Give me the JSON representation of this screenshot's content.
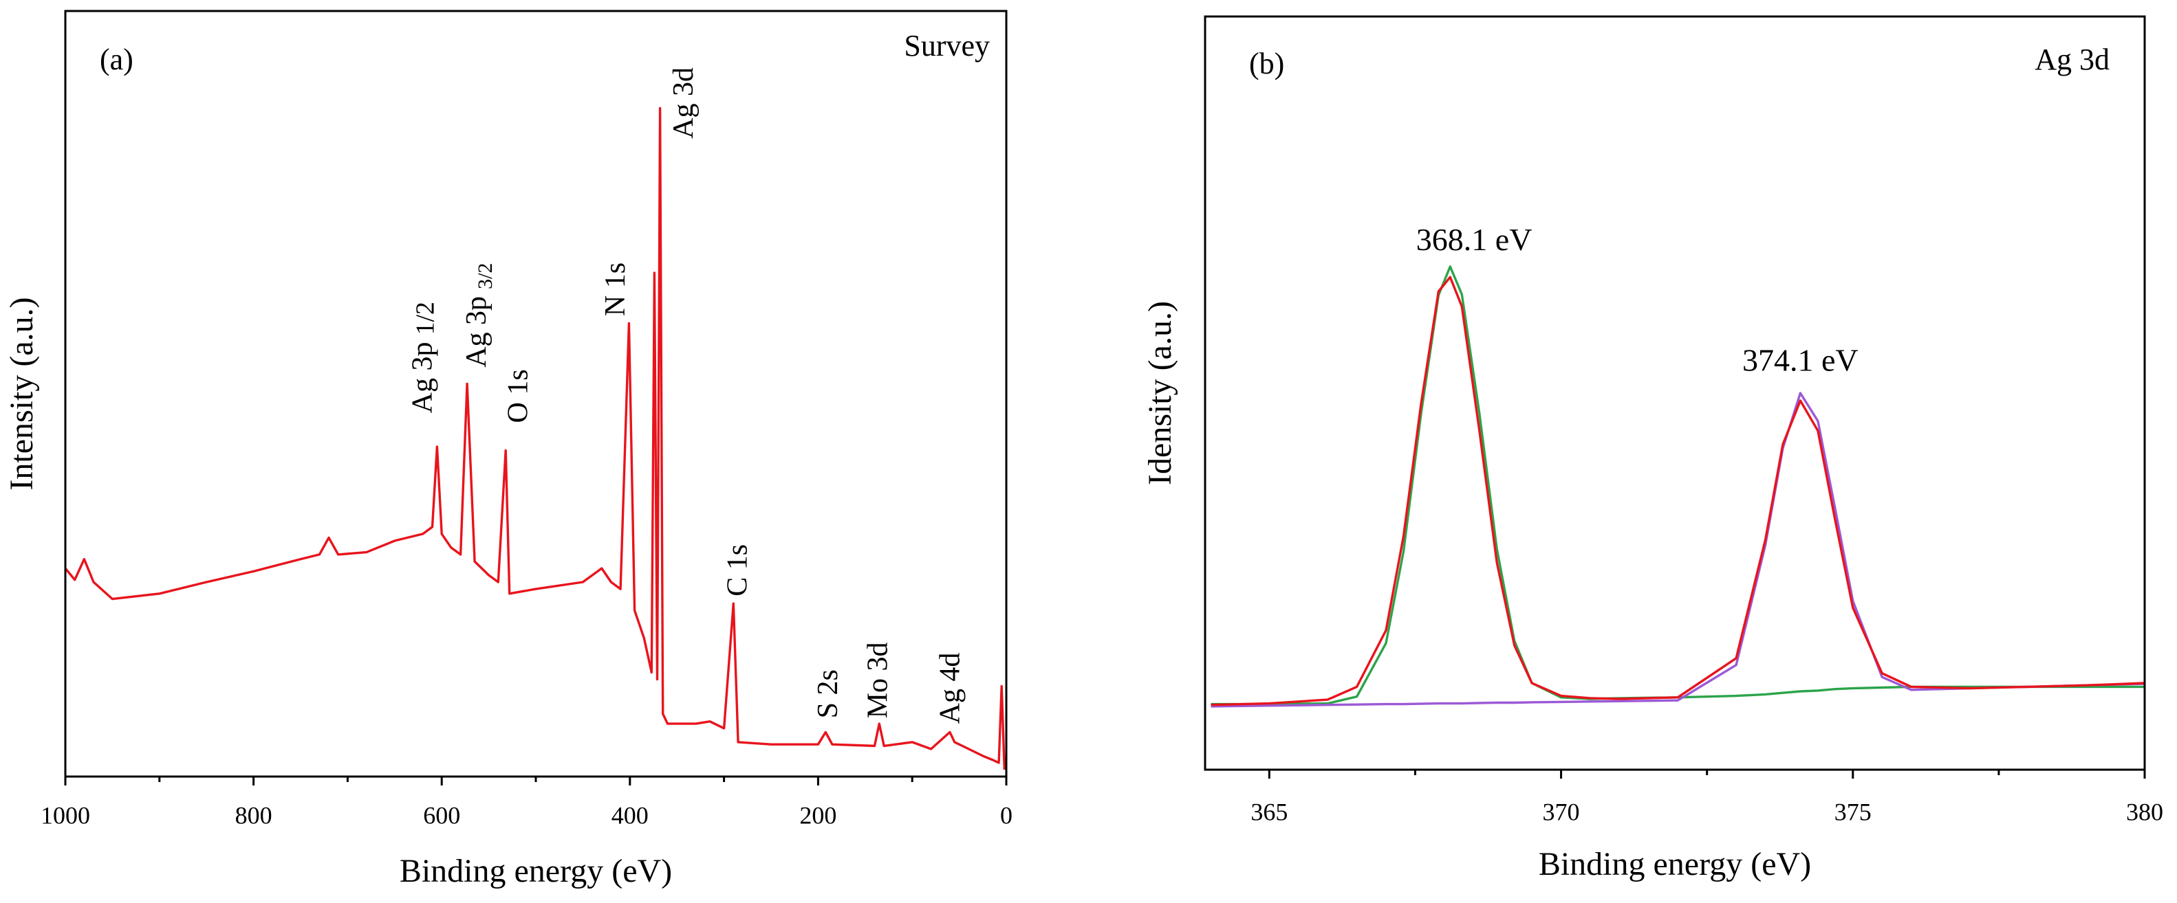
{
  "chart_data": [
    {
      "type": "line",
      "panel_label": "(a)",
      "title": "Survey",
      "x_label": "Binding energy (eV)",
      "y_label": "Intensity (a.u.)",
      "xlim": [
        1000,
        0
      ],
      "xticks": [
        1000,
        800,
        600,
        400,
        200,
        0
      ],
      "minor_xticks": [
        900,
        700,
        500,
        300,
        100
      ],
      "ylim": [
        0,
        100
      ],
      "x": [
        1000,
        990,
        980,
        970,
        950,
        900,
        850,
        800,
        750,
        730,
        720,
        710,
        680,
        650,
        620,
        610,
        605,
        600,
        590,
        580,
        573,
        565,
        550,
        540,
        532,
        528,
        500,
        450,
        430,
        420,
        410,
        401,
        395,
        385,
        377,
        374,
        371,
        368,
        365,
        360,
        330,
        315,
        300,
        290,
        285,
        250,
        200,
        192,
        185,
        140,
        135,
        130,
        100,
        80,
        60,
        55,
        40,
        25,
        15,
        8,
        5,
        2
      ],
      "series": [
        {
          "color": "#e8141c",
          "values": [
            27.2,
            25.7,
            28.4,
            25.4,
            23.2,
            23.9,
            25.4,
            26.8,
            28.4,
            29.0,
            31.2,
            29.0,
            29.3,
            30.8,
            31.7,
            32.6,
            43.1,
            31.7,
            29.9,
            29.0,
            51.3,
            28.1,
            26.3,
            25.4,
            42.6,
            23.9,
            24.5,
            25.4,
            27.2,
            25.4,
            24.5,
            59.2,
            21.7,
            18.1,
            13.6,
            65.8,
            12.7,
            87.3,
            8.2,
            6.9,
            6.9,
            7.2,
            6.3,
            22.6,
            4.5,
            4.2,
            4.2,
            5.8,
            4.2,
            4.0,
            6.9,
            4.0,
            4.5,
            3.6,
            5.8,
            4.5,
            3.6,
            2.7,
            2.2,
            1.8,
            11.8,
            0.9
          ]
        }
      ],
      "annotations": [
        {
          "text": "Ag 3d"
        },
        {
          "text": "N 1s"
        },
        {
          "text": "Ag 3p",
          "sub": "1/2"
        },
        {
          "text": "Ag 3p",
          "sub": "3/2"
        },
        {
          "text": "O 1s"
        },
        {
          "text": "C 1s"
        },
        {
          "text": "S 2s"
        },
        {
          "text": "Mo 3d"
        },
        {
          "text": "Ag 4d"
        }
      ]
    },
    {
      "type": "line",
      "panel_label": "(b)",
      "title": "Ag 3d",
      "x_label": "Binding energy (eV)",
      "y_label": "Idensity (a.u.)",
      "xlim": [
        363.9,
        380
      ],
      "xticks": [
        365,
        370,
        375,
        380
      ],
      "minor_xticks": [
        367.5,
        372.5,
        377.5
      ],
      "ylim": [
        0,
        100
      ],
      "x": [
        364,
        365,
        366,
        366.5,
        367,
        367.3,
        367.6,
        367.9,
        368.1,
        368.3,
        368.6,
        368.9,
        369.2,
        369.5,
        370,
        370.5,
        371,
        372,
        373,
        373.5,
        373.8,
        374.1,
        374.4,
        374.7,
        375,
        375.5,
        376,
        377,
        378,
        379,
        380
      ],
      "series": [
        {
          "color": "#2ca44a",
          "values": [
            8.7,
            8.7,
            8.8,
            9.7,
            16.8,
            29.0,
            47.2,
            63.0,
            66.8,
            63.1,
            47.3,
            29.3,
            17.1,
            11.5,
            9.6,
            9.4,
            9.5,
            9.6,
            9.8,
            10.0,
            10.2,
            10.4,
            10.5,
            10.7,
            10.8,
            10.9,
            11.0,
            11.0,
            11.0,
            11.0,
            11.0
          ]
        },
        {
          "color": "#9b59d6",
          "values": [
            8.4,
            8.5,
            8.6,
            8.65,
            8.7,
            8.7,
            8.75,
            8.8,
            8.8,
            8.8,
            8.85,
            8.9,
            8.9,
            8.95,
            9.0,
            9.05,
            9.1,
            9.2,
            13.9,
            29.8,
            42.7,
            50.0,
            46.3,
            34.5,
            22.4,
            12.3,
            10.6,
            10.8,
            11.0,
            11.2,
            11.4
          ]
        },
        {
          "color": "#e8141c",
          "values": [
            8.6,
            8.8,
            9.3,
            11.0,
            18.5,
            31.0,
            48.5,
            63.5,
            65.4,
            61.5,
            45.0,
            27.5,
            16.5,
            11.5,
            9.8,
            9.5,
            9.4,
            9.6,
            14.8,
            30.5,
            43.2,
            49.0,
            45.0,
            33.0,
            21.5,
            12.8,
            11.0,
            10.8,
            11.0,
            11.2,
            11.5
          ]
        }
      ],
      "annotations": [
        {
          "text": "368.1 eV"
        },
        {
          "text": "374.1 eV"
        }
      ]
    }
  ]
}
